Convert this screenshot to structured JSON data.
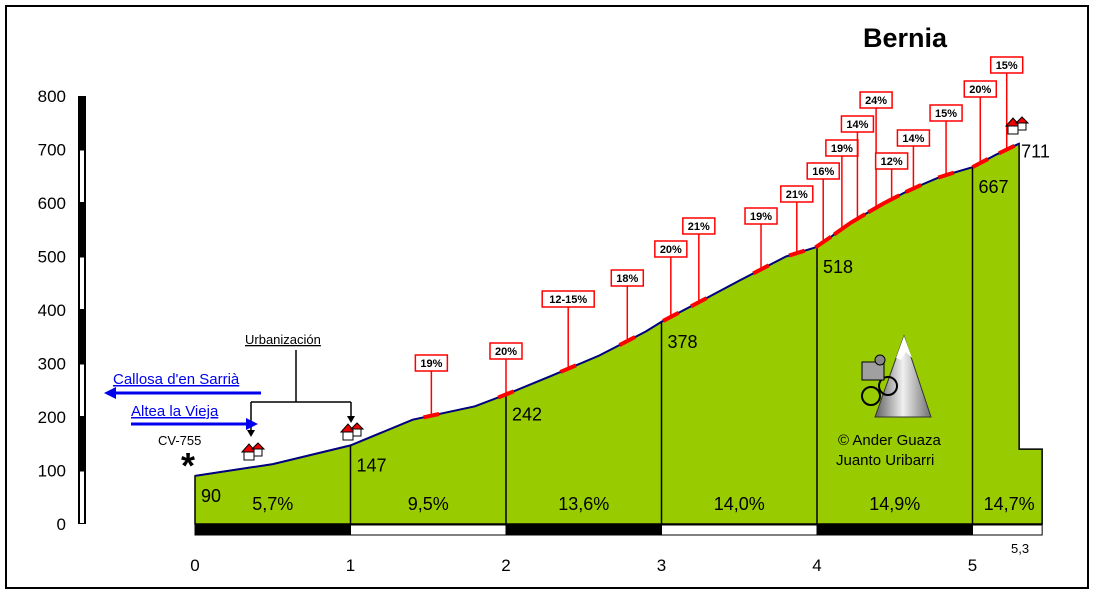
{
  "chart_data": {
    "type": "area",
    "title": "Bernia",
    "xlabel": "",
    "ylabel": "",
    "xlim": [
      0,
      5.3
    ],
    "ylim": [
      0,
      800
    ],
    "x_ticks": [
      "0",
      "1",
      "2",
      "3",
      "4",
      "5"
    ],
    "x_end_label": "5,3",
    "y_ticks": [
      "0",
      "100",
      "200",
      "300",
      "400",
      "500",
      "600",
      "700",
      "800"
    ],
    "profile": {
      "x": [
        0,
        0.5,
        1,
        1.4,
        1.8,
        2,
        2.3,
        2.6,
        2.9,
        3,
        3.25,
        3.5,
        3.8,
        4,
        4.2,
        4.4,
        4.6,
        4.8,
        5,
        5.15,
        5.3
      ],
      "y": [
        90,
        112,
        147,
        195,
        220,
        242,
        278,
        315,
        360,
        378,
        416,
        455,
        500,
        518,
        560,
        595,
        625,
        650,
        667,
        690,
        711
      ]
    },
    "elevation_labels": [
      {
        "x": 0,
        "text": "90"
      },
      {
        "x": 1,
        "text": "147"
      },
      {
        "x": 2,
        "text": "242"
      },
      {
        "x": 3,
        "text": "378"
      },
      {
        "x": 4,
        "text": "518"
      },
      {
        "x": 5,
        "text": "667"
      },
      {
        "x": 5.3,
        "text": "711"
      }
    ],
    "segment_gradients": [
      {
        "from": 0,
        "to": 1,
        "text": "5,7%"
      },
      {
        "from": 1,
        "to": 2,
        "text": "9,5%"
      },
      {
        "from": 2,
        "to": 3,
        "text": "13,6%"
      },
      {
        "from": 3,
        "to": 4,
        "text": "14,0%"
      },
      {
        "from": 4,
        "to": 5,
        "text": "14,9%"
      },
      {
        "from": 5,
        "to": 5.3,
        "text": "14,7%"
      }
    ],
    "max_gradients": [
      {
        "x": 1.52,
        "text": "19%"
      },
      {
        "x": 2.0,
        "text": "20%"
      },
      {
        "x": 2.4,
        "text": "12-15%"
      },
      {
        "x": 2.78,
        "text": "18%"
      },
      {
        "x": 3.06,
        "text": "20%"
      },
      {
        "x": 3.24,
        "text": "21%"
      },
      {
        "x": 3.64,
        "text": "19%"
      },
      {
        "x": 3.87,
        "text": "21%"
      },
      {
        "x": 4.04,
        "text": "16%"
      },
      {
        "x": 4.16,
        "text": "19%"
      },
      {
        "x": 4.26,
        "text": "14%"
      },
      {
        "x": 4.38,
        "text": "24%"
      },
      {
        "x": 4.48,
        "text": "12%"
      },
      {
        "x": 4.62,
        "text": "14%"
      },
      {
        "x": 4.83,
        "text": "15%"
      },
      {
        "x": 5.05,
        "text": "20%"
      },
      {
        "x": 5.22,
        "text": "15%"
      }
    ],
    "colors": {
      "fill": "#99cc00",
      "profile_line": "#000080",
      "steep": "#ff0000",
      "label_border": "#ff0000"
    }
  },
  "annotations": {
    "urbanizacion": "Urbanización",
    "road": "CV-755",
    "start_marker": "*",
    "link_callosa": "Callosa d'en Sarrià",
    "link_altea": "Altea la Vieja",
    "credit_line1": "© Ander Guaza",
    "credit_line2": "Juanto Uribarri"
  }
}
